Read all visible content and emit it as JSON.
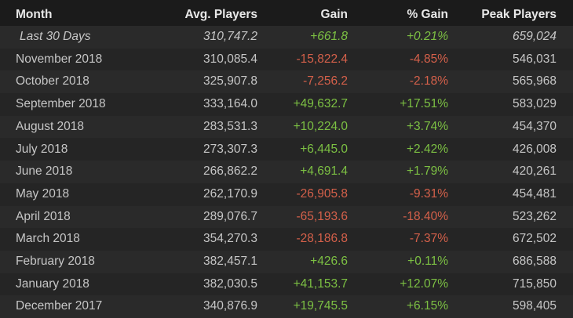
{
  "table": {
    "header": [
      "Month",
      "Avg. Players",
      "Gain",
      "% Gain",
      "Peak Players"
    ],
    "rows": [
      [
        "Last 30 Days",
        "310,747.2",
        "+661.8",
        "+0.21%",
        "659,024"
      ],
      [
        "November 2018",
        "310,085.4",
        "-15,822.4",
        "-4.85%",
        "546,031"
      ],
      [
        "October 2018",
        "325,907.8",
        "-7,256.2",
        "-2.18%",
        "565,968"
      ],
      [
        "September 2018",
        "333,164.0",
        "+49,632.7",
        "+17.51%",
        "583,029"
      ],
      [
        "August 2018",
        "283,531.3",
        "+10,224.0",
        "+3.74%",
        "454,370"
      ],
      [
        "July 2018",
        "273,307.3",
        "+6,445.0",
        "+2.42%",
        "426,008"
      ],
      [
        "June 2018",
        "266,862.2",
        "+4,691.4",
        "+1.79%",
        "420,261"
      ],
      [
        "May 2018",
        "262,170.9",
        "-26,905.8",
        "-9.31%",
        "454,481"
      ],
      [
        "April 2018",
        "289,076.7",
        "-65,193.6",
        "-18.40%",
        "523,262"
      ],
      [
        "March 2018",
        "354,270.3",
        "-28,186.8",
        "-7.37%",
        "672,502"
      ],
      [
        "February 2018",
        "382,457.1",
        "+426.6",
        "+0.11%",
        "686,588"
      ],
      [
        "January 2018",
        "382,030.5",
        "+41,153.7",
        "+12.07%",
        "715,850"
      ],
      [
        "December 2017",
        "340,876.9",
        "+19,745.5",
        "+6.15%",
        "598,405"
      ]
    ]
  }
}
